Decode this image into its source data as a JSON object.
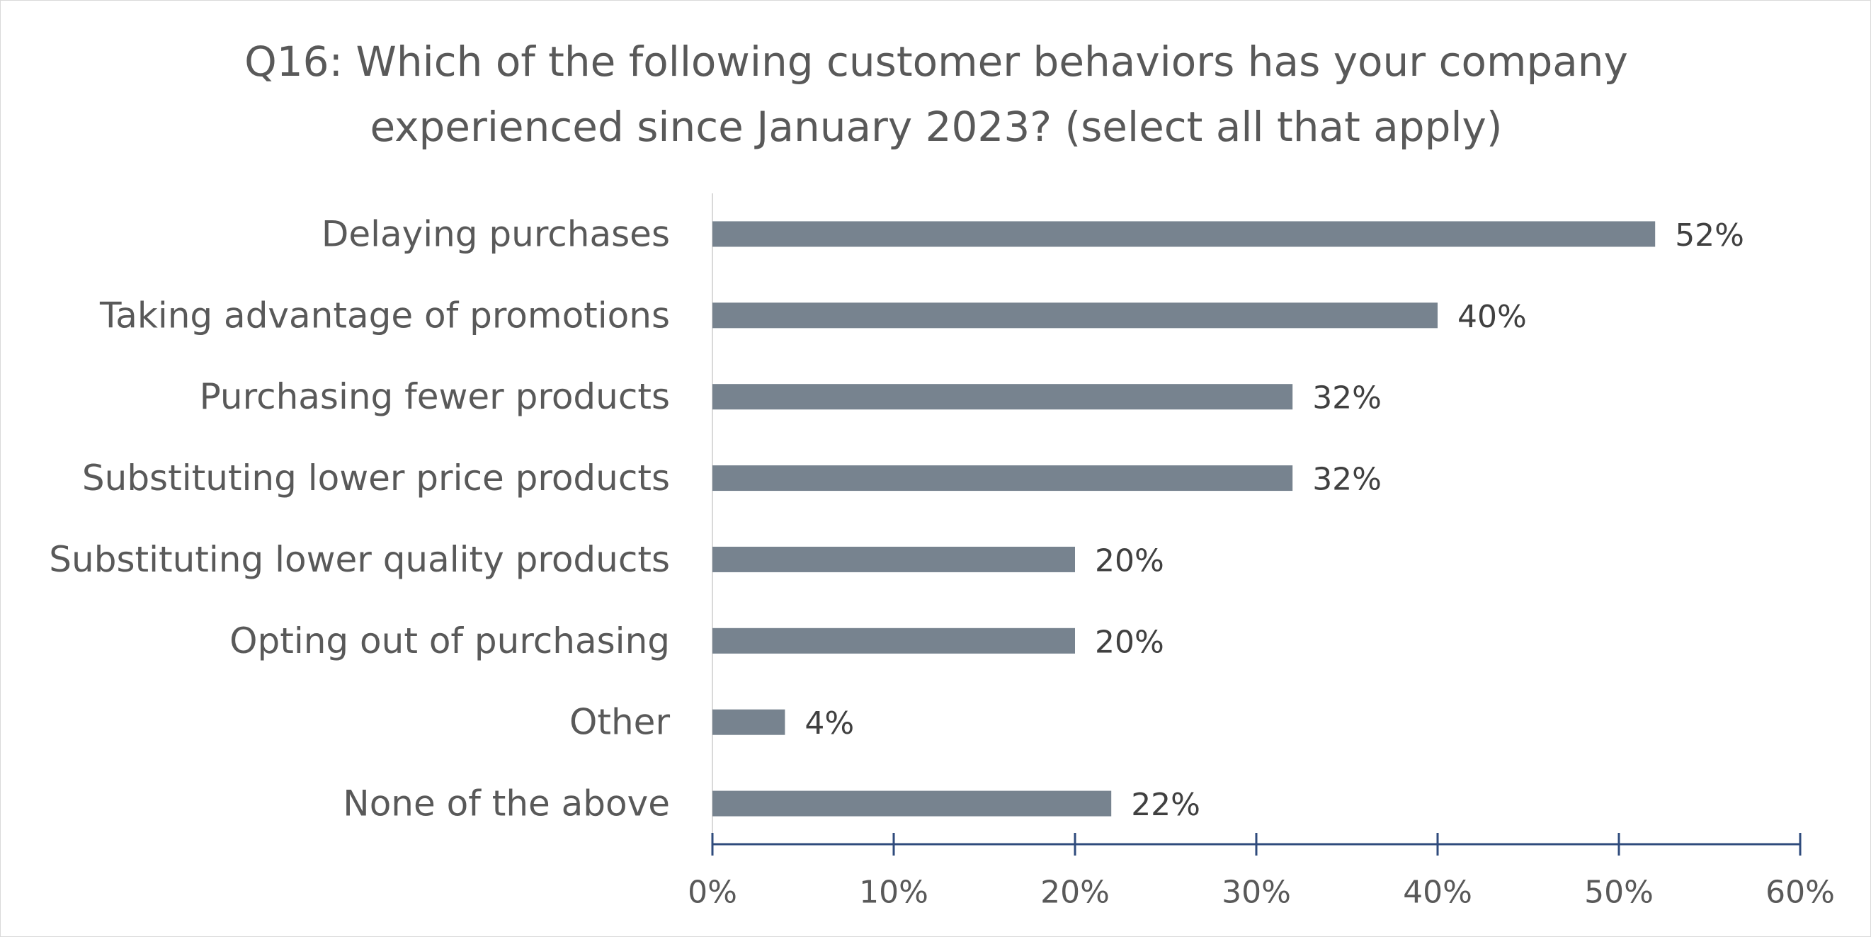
{
  "chart_data": {
    "type": "bar",
    "orientation": "horizontal",
    "title_lines": [
      "Q16: Which of the following customer behaviors has your company",
      "experienced since January 2023? (select all that apply)"
    ],
    "categories": [
      "Delaying purchases",
      "Taking advantage of promotions",
      "Purchasing fewer products",
      "Substituting lower price products",
      "Substituting lower quality products",
      "Opting out of purchasing",
      "Other",
      "None of the above"
    ],
    "values": [
      52,
      40,
      32,
      32,
      20,
      20,
      4,
      22
    ],
    "data_labels": [
      "52%",
      "40%",
      "32%",
      "32%",
      "20%",
      "20%",
      "4%",
      "22%"
    ],
    "xlim": [
      0,
      60
    ],
    "x_ticks": [
      0,
      10,
      20,
      30,
      40,
      50,
      60
    ],
    "x_tick_labels": [
      "0%",
      "10%",
      "20%",
      "30%",
      "40%",
      "50%",
      "60%"
    ],
    "bar_color": "#77838f",
    "axis_color": "#2f4b7c",
    "grid": false,
    "legend": "none"
  }
}
